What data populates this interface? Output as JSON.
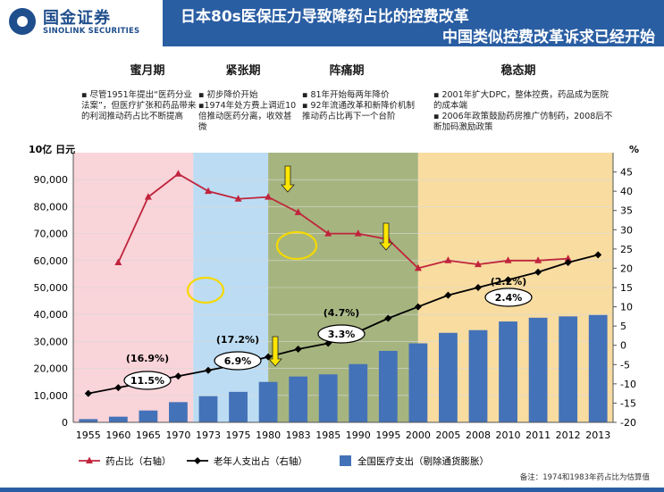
{
  "header": {
    "logo_cn": "国金证券",
    "logo_en": "SINOLINK SECURITIES",
    "title_line1": "日本80s医保压力导致降药占比的控费改革",
    "title_line2": "中国类似控费改革诉求已经开始"
  },
  "phases": [
    {
      "name": "蜜月期",
      "note": "▪ 尽管1951年提出“医药分业法案”，但医疗扩张和药品带来的利润推动药占比不断提高"
    },
    {
      "name": "紧张期",
      "note": "▪ 初步降价开始\n▪1974年处方费上调近10倍推动医药分离，收效甚微"
    },
    {
      "name": "阵痛期",
      "note": "▪ 81年开始每两年降价\n▪ 92年流通改革和新降价机制推动药占比再下一个台阶"
    },
    {
      "name": "稳态期",
      "note": "▪ 2001年扩大DPC，整体控费，药品成为医院的成本端\n▪ 2006年政策鼓励药房推广仿制药，2008后不断加码激励政策"
    }
  ],
  "colors": {
    "title_bg": "#2a5ea3",
    "phase1": "#f9d4d9",
    "phase2": "#bcdcf3",
    "phase3": "#a6b57f",
    "phase4": "#f8dca0",
    "bar": "#4472b8",
    "drug_line": "#c0243c",
    "elderly_line": "#000000"
  },
  "chart_data": {
    "type": "bar",
    "categories": [
      "1955",
      "1960",
      "1965",
      "1970",
      "1973",
      "1975",
      "1980",
      "1983",
      "1985",
      "1990",
      "1995",
      "2000",
      "2005",
      "2008",
      "2010",
      "2011",
      "2012",
      "2013"
    ],
    "y_left_unit": "10亿 日元",
    "y_right_unit": "%",
    "ylim_left": [
      0,
      100000
    ],
    "ylim_right": [
      -20,
      50
    ],
    "left_ticks": [
      "0",
      "10,000",
      "20,000",
      "30,000",
      "40,000",
      "50,000",
      "60,000",
      "70,000",
      "80,000",
      "90,000"
    ],
    "right_ticks": [
      "-20",
      "-15",
      "-10",
      "-5",
      "0",
      "5",
      "10",
      "15",
      "20",
      "25",
      "30",
      "35",
      "40",
      "45"
    ],
    "series": [
      {
        "name": "全国医疗支出（剔除通货膨胀）",
        "type": "bar",
        "axis": "left",
        "values": [
          1200,
          2100,
          4400,
          7500,
          9700,
          11300,
          15000,
          17000,
          17800,
          21600,
          26500,
          29300,
          33200,
          34200,
          37400,
          38800,
          39300,
          39800
        ]
      },
      {
        "name": "药占比（右轴）",
        "type": "line",
        "axis": "right",
        "values": [
          null,
          21.5,
          38.5,
          44.5,
          40,
          38,
          38.5,
          34.5,
          29,
          29,
          27.5,
          20,
          22,
          21,
          22,
          22,
          22.5,
          null
        ]
      },
      {
        "name": "老年人支出占（右轴）",
        "type": "line",
        "axis": "right",
        "values": [
          -12.5,
          -11,
          -9.5,
          -8,
          -6.5,
          -5,
          -3,
          -1,
          0.5,
          3.5,
          7,
          10,
          13,
          15,
          17,
          19,
          21.5,
          23.5
        ]
      }
    ],
    "growth_labels": [
      {
        "text": "(16.9%)"
      },
      {
        "text": "11.5%"
      },
      {
        "text": "(17.2%)"
      },
      {
        "text": "6.9%"
      },
      {
        "text": "(4.7%)"
      },
      {
        "text": "3.3%"
      },
      {
        "text": "(2.2%)"
      },
      {
        "text": "2.4%"
      }
    ]
  },
  "footnote": "备注：1974和1983年药占比为估算值"
}
